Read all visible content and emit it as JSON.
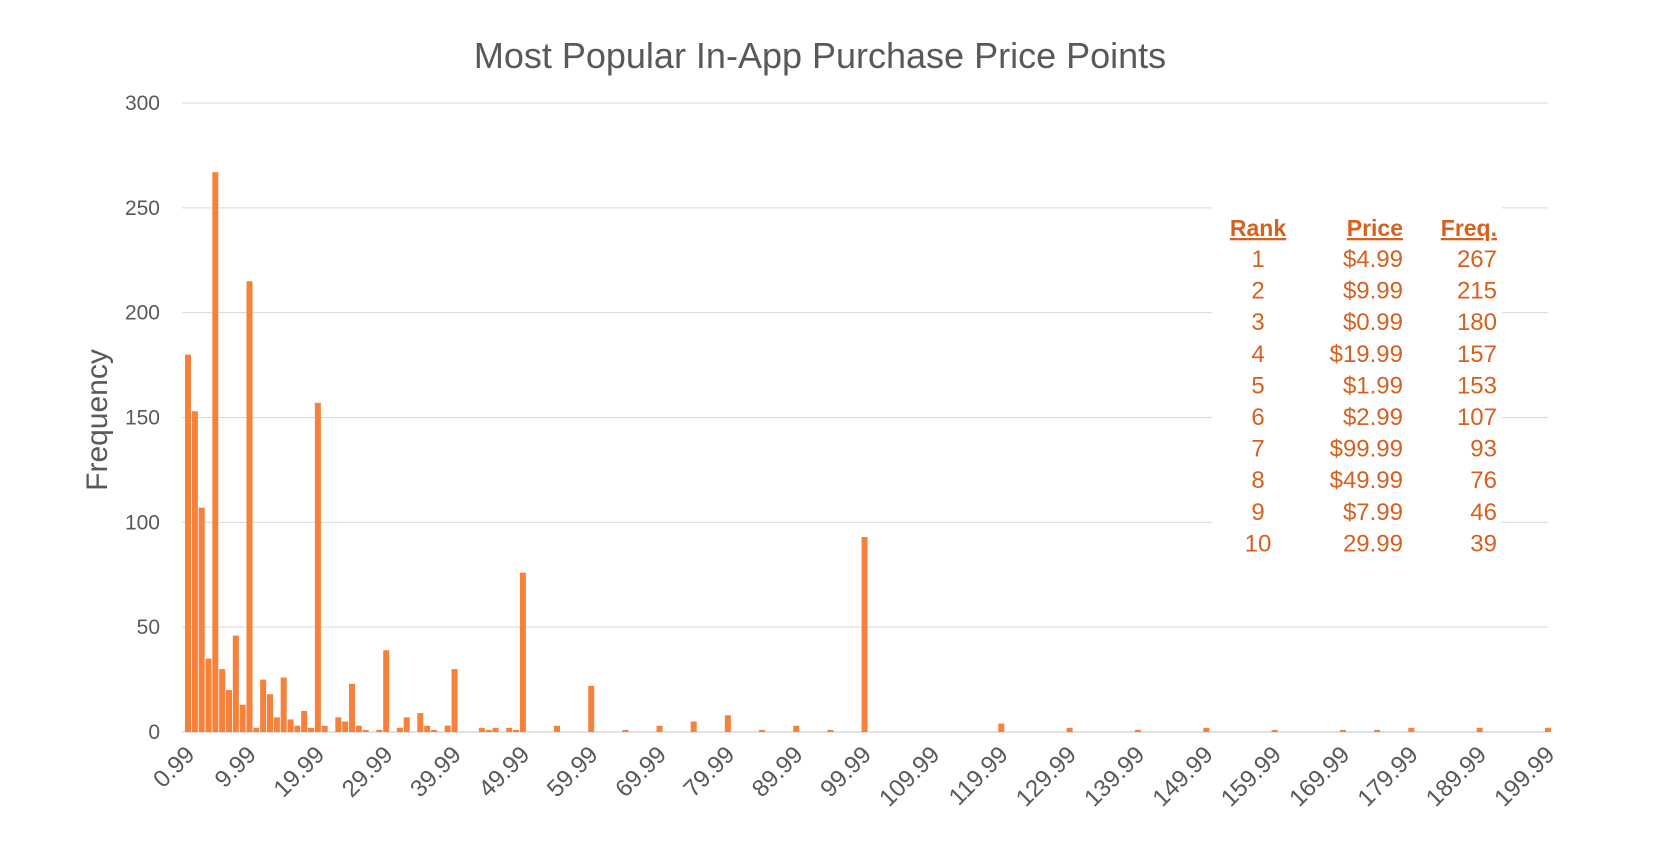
{
  "chart_data": {
    "type": "bar",
    "title": "Most Popular In-App Purchase Price Points",
    "ylabel": "Frequency",
    "xlabel": "",
    "ylim": [
      0,
      300
    ],
    "yticks": [
      0,
      50,
      100,
      150,
      200,
      250,
      300
    ],
    "xlim": [
      0.99,
      199.99
    ],
    "xticks": [
      "0.99",
      "9.99",
      "19.99",
      "29.99",
      "39.99",
      "49.99",
      "59.99",
      "69.99",
      "79.99",
      "89.99",
      "99.99",
      "109.99",
      "119.99",
      "129.99",
      "139.99",
      "149.99",
      "159.99",
      "169.99",
      "179.99",
      "189.99",
      "199.99"
    ],
    "grid": true,
    "bar_color": "#F5813A",
    "text_color": "#595959",
    "table_color": "#D8601F",
    "points": [
      {
        "x": 0.99,
        "y": 180
      },
      {
        "x": 1.99,
        "y": 153
      },
      {
        "x": 2.99,
        "y": 107
      },
      {
        "x": 3.99,
        "y": 35
      },
      {
        "x": 4.99,
        "y": 267
      },
      {
        "x": 5.99,
        "y": 30
      },
      {
        "x": 6.99,
        "y": 20
      },
      {
        "x": 7.99,
        "y": 46
      },
      {
        "x": 8.99,
        "y": 13
      },
      {
        "x": 9.99,
        "y": 215
      },
      {
        "x": 10.99,
        "y": 2
      },
      {
        "x": 11.99,
        "y": 25
      },
      {
        "x": 12.99,
        "y": 18
      },
      {
        "x": 13.99,
        "y": 7
      },
      {
        "x": 14.99,
        "y": 26
      },
      {
        "x": 15.99,
        "y": 6
      },
      {
        "x": 16.99,
        "y": 3
      },
      {
        "x": 17.99,
        "y": 10
      },
      {
        "x": 18.99,
        "y": 2
      },
      {
        "x": 19.99,
        "y": 157
      },
      {
        "x": 20.99,
        "y": 3
      },
      {
        "x": 22.99,
        "y": 7
      },
      {
        "x": 23.99,
        "y": 5
      },
      {
        "x": 24.99,
        "y": 23
      },
      {
        "x": 25.99,
        "y": 3
      },
      {
        "x": 26.99,
        "y": 1
      },
      {
        "x": 28.99,
        "y": 1
      },
      {
        "x": 29.99,
        "y": 39
      },
      {
        "x": 31.99,
        "y": 2
      },
      {
        "x": 32.99,
        "y": 7
      },
      {
        "x": 34.99,
        "y": 9
      },
      {
        "x": 35.99,
        "y": 3
      },
      {
        "x": 36.99,
        "y": 1
      },
      {
        "x": 38.99,
        "y": 3
      },
      {
        "x": 39.99,
        "y": 30
      },
      {
        "x": 43.99,
        "y": 2
      },
      {
        "x": 44.99,
        "y": 1
      },
      {
        "x": 45.99,
        "y": 2
      },
      {
        "x": 47.99,
        "y": 2
      },
      {
        "x": 48.99,
        "y": 1
      },
      {
        "x": 49.99,
        "y": 76
      },
      {
        "x": 54.99,
        "y": 3
      },
      {
        "x": 59.99,
        "y": 22
      },
      {
        "x": 64.99,
        "y": 1
      },
      {
        "x": 69.99,
        "y": 3
      },
      {
        "x": 74.99,
        "y": 5
      },
      {
        "x": 79.99,
        "y": 8
      },
      {
        "x": 84.99,
        "y": 1
      },
      {
        "x": 89.99,
        "y": 3
      },
      {
        "x": 94.99,
        "y": 1
      },
      {
        "x": 99.99,
        "y": 93
      },
      {
        "x": 119.99,
        "y": 4
      },
      {
        "x": 129.99,
        "y": 2
      },
      {
        "x": 139.99,
        "y": 1
      },
      {
        "x": 149.99,
        "y": 2
      },
      {
        "x": 159.99,
        "y": 1
      },
      {
        "x": 169.99,
        "y": 1
      },
      {
        "x": 174.99,
        "y": 1
      },
      {
        "x": 179.99,
        "y": 2
      },
      {
        "x": 189.99,
        "y": 2
      },
      {
        "x": 199.99,
        "y": 2
      }
    ],
    "table": {
      "headers": [
        "Rank",
        "Price",
        "Freq."
      ],
      "rows": [
        [
          "1",
          "$4.99",
          "267"
        ],
        [
          "2",
          "$9.99",
          "215"
        ],
        [
          "3",
          "$0.99",
          "180"
        ],
        [
          "4",
          "$19.99",
          "157"
        ],
        [
          "5",
          "$1.99",
          "153"
        ],
        [
          "6",
          "$2.99",
          "107"
        ],
        [
          "7",
          "$99.99",
          "93"
        ],
        [
          "8",
          "$49.99",
          "76"
        ],
        [
          "9",
          "$7.99",
          "46"
        ],
        [
          "10",
          "29.99",
          "39"
        ]
      ]
    }
  }
}
